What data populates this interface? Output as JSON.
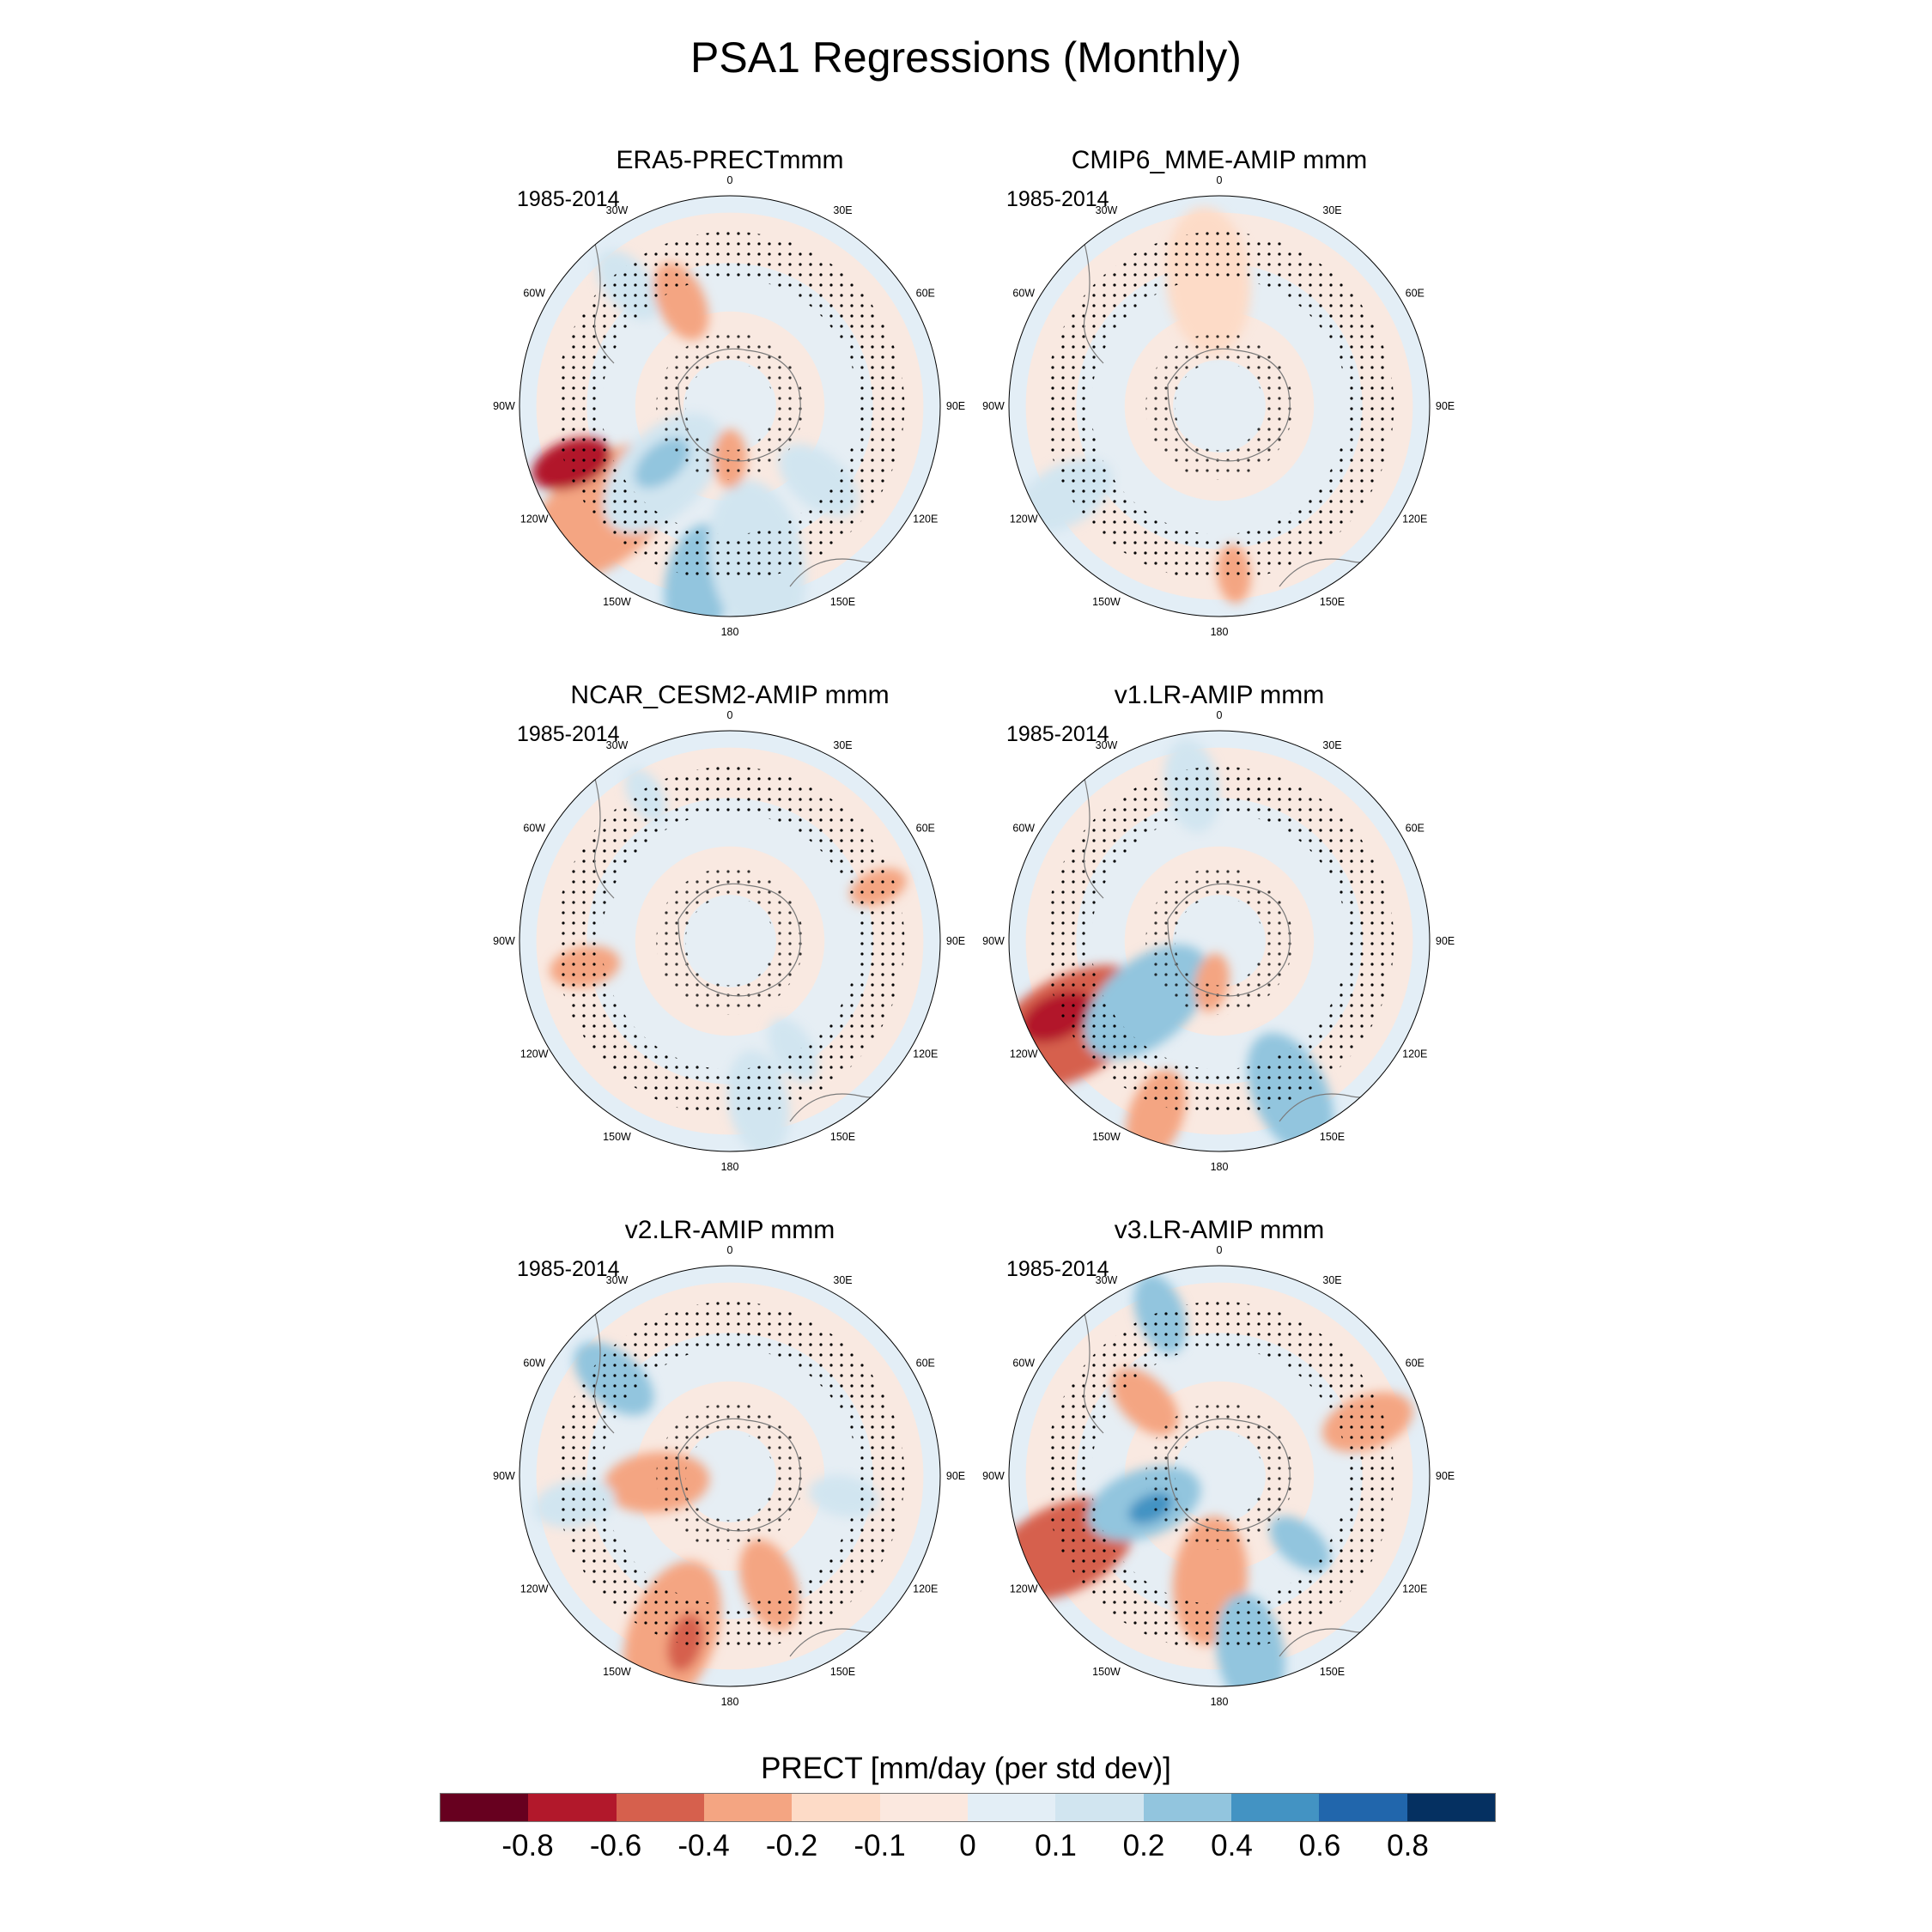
{
  "title": "PSA1 Regressions (Monthly)",
  "chart_data": {
    "type": "heatmap",
    "projection": "south polar stereographic",
    "variable": "PRECT",
    "units_label": "PRECT [mm/day (per std dev)]",
    "lon_labels": [
      "0",
      "30E",
      "60E",
      "90E",
      "120E",
      "150E",
      "180",
      "150W",
      "120W",
      "90W",
      "60W",
      "30W"
    ],
    "levels": [
      "-0.8",
      "-0.6",
      "-0.4",
      "-0.2",
      "-0.1",
      "0",
      "0.1",
      "0.2",
      "0.4",
      "0.6",
      "0.8"
    ],
    "colors": [
      "#67001f",
      "#b2182b",
      "#d6604d",
      "#f4a582",
      "#fddbc7",
      "#fbe8df",
      "#e3eef6",
      "#d1e5f0",
      "#92c5de",
      "#4393c3",
      "#2166ac",
      "#053061"
    ],
    "panels": [
      {
        "title": "ERA5-PRECTmmm",
        "period": "1985-2014"
      },
      {
        "title": "CMIP6_MME-AMIP  mmm",
        "period": "1985-2014"
      },
      {
        "title": "NCAR_CESM2-AMIP  mmm",
        "period": "1985-2014"
      },
      {
        "title": "v1.LR-AMIP  mmm",
        "period": "1985-2014"
      },
      {
        "title": "v2.LR-AMIP  mmm",
        "period": "1985-2014"
      },
      {
        "title": "v3.LR-AMIP  mmm",
        "period": "1985-2014"
      }
    ]
  }
}
